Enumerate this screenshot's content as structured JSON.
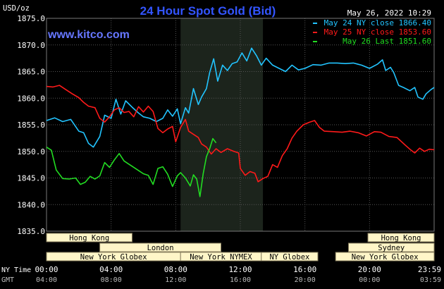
{
  "header": {
    "title": "24 Hour Spot Gold (Bid)",
    "timestamp": "May 26, 2022 10:29",
    "site": "www.kitco.com",
    "unit": "USD/oz"
  },
  "colors": {
    "background": "#000000",
    "grid": "#555555",
    "title": "#3355ff",
    "site": "#6677ff",
    "axis_text": "#ffffff",
    "may24": "#22c4ff",
    "may25": "#ff1a1a",
    "may26": "#22dd22",
    "highlight": "#1c241c",
    "session_fill": "#fff6c8",
    "session_text": "#000000"
  },
  "chart_data": {
    "type": "line",
    "ylim": [
      1835.0,
      1875.0
    ],
    "y_ticks": [
      "1875.0",
      "1870.0",
      "1865.0",
      "1860.0",
      "1855.0",
      "1850.0",
      "1845.0",
      "1840.0",
      "1835.0"
    ],
    "x_hours": [
      0,
      24
    ],
    "x_axis_rows": [
      {
        "label": "NY Time",
        "ticks": [
          {
            "hour": 0,
            "text": "00:00"
          },
          {
            "hour": 4,
            "text": "04:00"
          },
          {
            "hour": 8,
            "text": "08:00"
          },
          {
            "hour": 12,
            "text": "12:00"
          },
          {
            "hour": 16,
            "text": "16:00"
          },
          {
            "hour": 20,
            "text": "20:00"
          },
          {
            "hour": 23.983,
            "text": "23:59"
          }
        ]
      },
      {
        "label": "GMT",
        "ticks": [
          {
            "hour": 0,
            "text": "04:00"
          },
          {
            "hour": 4,
            "text": "08:00"
          },
          {
            "hour": 8,
            "text": "12:00"
          },
          {
            "hour": 12,
            "text": "16:00"
          },
          {
            "hour": 16,
            "text": "20:00"
          },
          {
            "hour": 20,
            "text": "00:00"
          },
          {
            "hour": 23.983,
            "text": "03:59"
          }
        ]
      }
    ],
    "highlight_hours": [
      8.3,
      13.4
    ],
    "legend": [
      {
        "text": "May 24 NY close 1866.40",
        "color_key": "may24"
      },
      {
        "text": "May 25 NY close 1853.60",
        "color_key": "may25"
      },
      {
        "text": "May 26 Last 1851.60",
        "color_key": "may26"
      }
    ],
    "series": [
      {
        "name": "May 24 NY close 1866.40",
        "color_key": "may24",
        "points": [
          [
            0,
            1855.8
          ],
          [
            0.5,
            1856.3
          ],
          [
            1,
            1855.6
          ],
          [
            1.5,
            1856.0
          ],
          [
            2,
            1853.8
          ],
          [
            2.3,
            1853.5
          ],
          [
            2.6,
            1851.5
          ],
          [
            2.9,
            1850.8
          ],
          [
            3.3,
            1852.8
          ],
          [
            3.6,
            1856.8
          ],
          [
            4,
            1856.2
          ],
          [
            4.3,
            1859.8
          ],
          [
            4.6,
            1857.0
          ],
          [
            4.9,
            1859.5
          ],
          [
            5.3,
            1858.3
          ],
          [
            5.7,
            1857.2
          ],
          [
            6,
            1856.5
          ],
          [
            6.4,
            1856.2
          ],
          [
            6.8,
            1855.6
          ],
          [
            7.2,
            1856.2
          ],
          [
            7.5,
            1857.8
          ],
          [
            7.8,
            1856.6
          ],
          [
            8.1,
            1858.0
          ],
          [
            8.3,
            1855.2
          ],
          [
            8.6,
            1858.2
          ],
          [
            8.8,
            1857.2
          ],
          [
            9.1,
            1861.8
          ],
          [
            9.4,
            1858.8
          ],
          [
            9.6,
            1860.2
          ],
          [
            9.9,
            1861.8
          ],
          [
            10.1,
            1864.8
          ],
          [
            10.35,
            1867.4
          ],
          [
            10.6,
            1863.2
          ],
          [
            10.9,
            1866.2
          ],
          [
            11.2,
            1865.2
          ],
          [
            11.5,
            1866.5
          ],
          [
            11.8,
            1866.8
          ],
          [
            12.1,
            1868.5
          ],
          [
            12.4,
            1867.0
          ],
          [
            12.7,
            1869.4
          ],
          [
            13.0,
            1868.0
          ],
          [
            13.3,
            1866.2
          ],
          [
            13.6,
            1867.5
          ],
          [
            14.0,
            1866.2
          ],
          [
            14.4,
            1865.6
          ],
          [
            14.8,
            1865.0
          ],
          [
            15.2,
            1866.2
          ],
          [
            15.6,
            1865.3
          ],
          [
            16.0,
            1865.6
          ],
          [
            16.5,
            1866.3
          ],
          [
            17.0,
            1866.2
          ],
          [
            17.5,
            1866.6
          ],
          [
            18.0,
            1866.6
          ],
          [
            18.5,
            1866.5
          ],
          [
            19.0,
            1866.6
          ],
          [
            19.5,
            1866.2
          ],
          [
            20.0,
            1865.6
          ],
          [
            20.5,
            1866.4
          ],
          [
            20.8,
            1867.2
          ],
          [
            21.0,
            1865.2
          ],
          [
            21.3,
            1865.8
          ],
          [
            21.5,
            1864.8
          ],
          [
            21.8,
            1862.4
          ],
          [
            22.1,
            1862.0
          ],
          [
            22.5,
            1861.4
          ],
          [
            22.8,
            1862.0
          ],
          [
            23.0,
            1860.2
          ],
          [
            23.3,
            1859.8
          ],
          [
            23.5,
            1860.8
          ],
          [
            23.8,
            1861.6
          ],
          [
            24,
            1862.0
          ]
        ]
      },
      {
        "name": "May 25 NY close 1853.60",
        "color_key": "may25",
        "points": [
          [
            0,
            1862.2
          ],
          [
            0.4,
            1862.1
          ],
          [
            0.8,
            1862.4
          ],
          [
            1.2,
            1861.6
          ],
          [
            1.6,
            1860.8
          ],
          [
            2.0,
            1860.1
          ],
          [
            2.3,
            1859.2
          ],
          [
            2.6,
            1858.5
          ],
          [
            3.0,
            1858.2
          ],
          [
            3.3,
            1856.2
          ],
          [
            3.6,
            1855.5
          ],
          [
            3.9,
            1856.5
          ],
          [
            4.2,
            1857.8
          ],
          [
            4.5,
            1858.2
          ],
          [
            4.8,
            1857.3
          ],
          [
            5.1,
            1857.5
          ],
          [
            5.4,
            1856.5
          ],
          [
            5.7,
            1858.4
          ],
          [
            6.0,
            1857.4
          ],
          [
            6.3,
            1858.5
          ],
          [
            6.6,
            1857.5
          ],
          [
            6.9,
            1854.3
          ],
          [
            7.2,
            1853.5
          ],
          [
            7.5,
            1854.2
          ],
          [
            7.8,
            1854.7
          ],
          [
            8.0,
            1851.8
          ],
          [
            8.3,
            1854.5
          ],
          [
            8.6,
            1856.0
          ],
          [
            8.8,
            1853.8
          ],
          [
            9.1,
            1853.2
          ],
          [
            9.4,
            1852.6
          ],
          [
            9.6,
            1851.4
          ],
          [
            9.9,
            1850.8
          ],
          [
            10.2,
            1849.5
          ],
          [
            10.5,
            1850.5
          ],
          [
            10.8,
            1849.8
          ],
          [
            11.2,
            1850.5
          ],
          [
            11.6,
            1850.0
          ],
          [
            11.9,
            1849.7
          ],
          [
            12.0,
            1846.8
          ],
          [
            12.3,
            1845.5
          ],
          [
            12.6,
            1846.2
          ],
          [
            12.9,
            1845.9
          ],
          [
            13.1,
            1844.3
          ],
          [
            13.4,
            1844.9
          ],
          [
            13.7,
            1845.3
          ],
          [
            14.0,
            1847.5
          ],
          [
            14.3,
            1847.0
          ],
          [
            14.6,
            1849.2
          ],
          [
            14.9,
            1850.5
          ],
          [
            15.2,
            1852.5
          ],
          [
            15.5,
            1853.8
          ],
          [
            15.9,
            1855.0
          ],
          [
            16.3,
            1855.5
          ],
          [
            16.6,
            1855.8
          ],
          [
            16.9,
            1854.5
          ],
          [
            17.2,
            1853.8
          ],
          [
            17.8,
            1853.7
          ],
          [
            18.3,
            1853.6
          ],
          [
            18.8,
            1853.8
          ],
          [
            19.3,
            1853.5
          ],
          [
            19.8,
            1852.9
          ],
          [
            20.3,
            1853.7
          ],
          [
            20.7,
            1853.6
          ],
          [
            21.2,
            1852.8
          ],
          [
            21.7,
            1852.6
          ],
          [
            22.2,
            1851.2
          ],
          [
            22.5,
            1850.4
          ],
          [
            22.8,
            1849.7
          ],
          [
            23.1,
            1850.6
          ],
          [
            23.4,
            1850.0
          ],
          [
            23.7,
            1850.4
          ],
          [
            24,
            1850.3
          ]
        ]
      },
      {
        "name": "May 26 Last 1851.60",
        "color_key": "may26",
        "points": [
          [
            0,
            1850.8
          ],
          [
            0.3,
            1850.2
          ],
          [
            0.6,
            1846.5
          ],
          [
            1.0,
            1844.9
          ],
          [
            1.4,
            1844.8
          ],
          [
            1.8,
            1845.0
          ],
          [
            2.1,
            1843.8
          ],
          [
            2.4,
            1844.2
          ],
          [
            2.7,
            1845.3
          ],
          [
            3.0,
            1844.8
          ],
          [
            3.3,
            1845.4
          ],
          [
            3.6,
            1847.9
          ],
          [
            3.9,
            1847.0
          ],
          [
            4.2,
            1848.4
          ],
          [
            4.5,
            1849.6
          ],
          [
            4.8,
            1848.2
          ],
          [
            5.1,
            1847.6
          ],
          [
            5.4,
            1847.0
          ],
          [
            5.7,
            1846.4
          ],
          [
            6.0,
            1845.8
          ],
          [
            6.3,
            1845.5
          ],
          [
            6.6,
            1843.8
          ],
          [
            6.9,
            1846.8
          ],
          [
            7.2,
            1847.1
          ],
          [
            7.5,
            1845.7
          ],
          [
            7.8,
            1843.4
          ],
          [
            8.1,
            1845.4
          ],
          [
            8.3,
            1846.0
          ],
          [
            8.6,
            1845.0
          ],
          [
            8.9,
            1843.5
          ],
          [
            9.1,
            1845.6
          ],
          [
            9.3,
            1844.8
          ],
          [
            9.5,
            1841.5
          ],
          [
            9.7,
            1845.8
          ],
          [
            9.9,
            1849.0
          ],
          [
            10.1,
            1850.5
          ],
          [
            10.3,
            1852.4
          ],
          [
            10.5,
            1851.6
          ]
        ]
      }
    ]
  },
  "sessions": [
    {
      "label": "Hong Kong",
      "row": 0,
      "start": 0,
      "end": 5.3
    },
    {
      "label": "London",
      "row": 1,
      "start": 3.3,
      "end": 10.8
    },
    {
      "label": "New York Globex",
      "row": 2,
      "start": 0,
      "end": 8.3
    },
    {
      "label": "New York NYMEX",
      "row": 2,
      "start": 8.3,
      "end": 13.3
    },
    {
      "label": "NY Globex",
      "row": 2,
      "start": 13.3,
      "end": 16.8
    },
    {
      "label": "Hong Kong",
      "row": 0,
      "start": 19.9,
      "end": 24
    },
    {
      "label": "Sydney",
      "row": 1,
      "start": 18.7,
      "end": 24
    },
    {
      "label": "New York Globex",
      "row": 2,
      "start": 17.9,
      "end": 24
    }
  ]
}
